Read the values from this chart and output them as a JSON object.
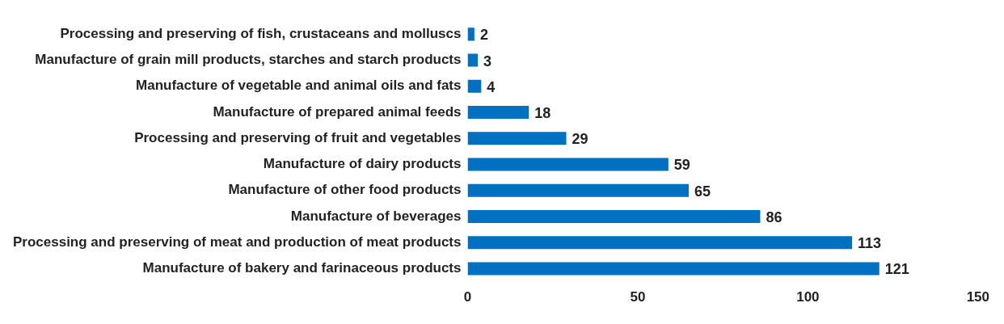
{
  "chart_data": {
    "type": "bar",
    "orientation": "horizontal",
    "categories": [
      "Processing and preserving of fish, crustaceans and molluscs",
      "Manufacture of grain mill products, starches and starch products",
      "Manufacture of vegetable and animal oils and fats",
      "Manufacture of prepared animal feeds",
      "Processing and preserving of fruit and vegetables",
      "Manufacture of dairy products",
      "Manufacture of other food products",
      "Manufacture of beverages",
      "Processing and preserving of meat and production of meat products",
      "Manufacture of bakery and farinaceous products"
    ],
    "values": [
      2,
      3,
      4,
      18,
      29,
      59,
      65,
      86,
      113,
      121
    ],
    "color": "#0070c0",
    "xlim": [
      0,
      150
    ],
    "xticks": [
      0,
      50,
      100,
      150
    ],
    "grid": false,
    "data_labels": true
  }
}
